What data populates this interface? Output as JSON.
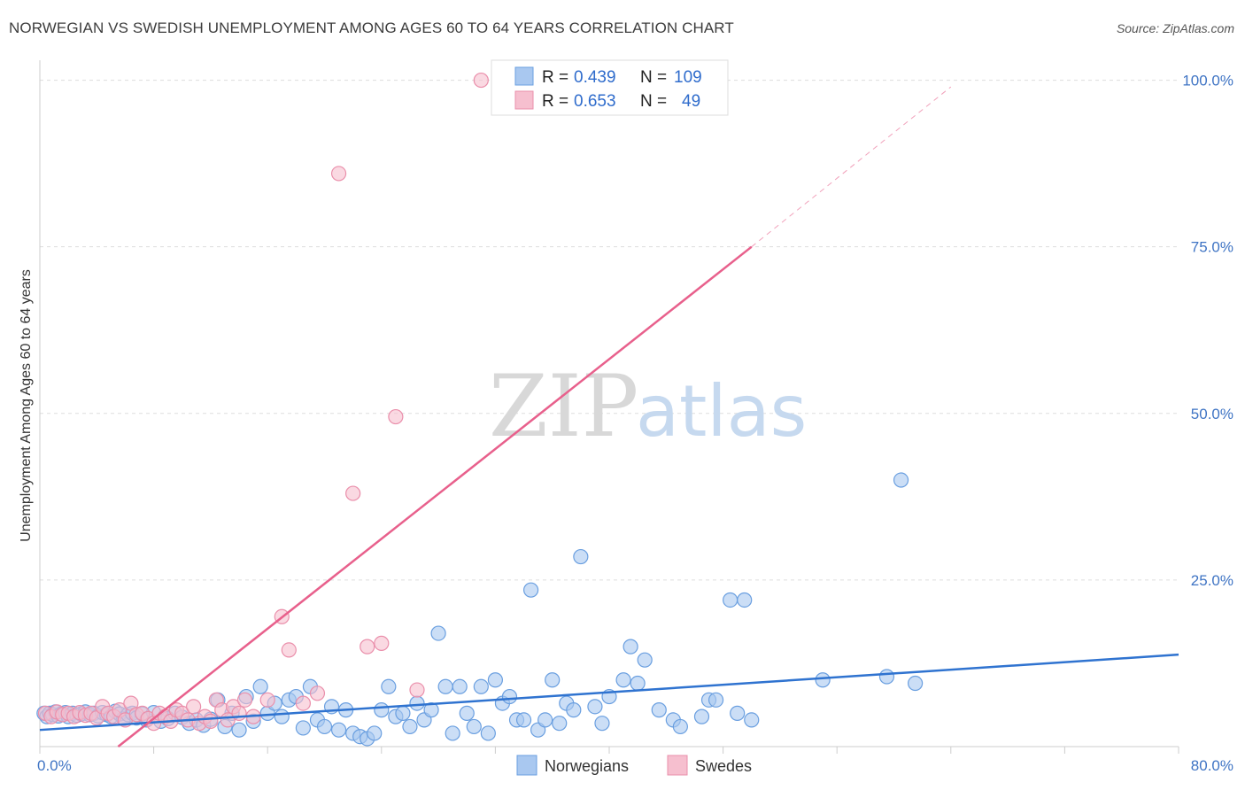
{
  "title": "NORWEGIAN VS SWEDISH UNEMPLOYMENT AMONG AGES 60 TO 64 YEARS CORRELATION CHART",
  "source": "Source: ZipAtlas.com",
  "watermark": {
    "zip": "ZIP",
    "atlas": "atlas"
  },
  "colors": {
    "blue_fill": "#a9c8f0",
    "blue_stroke": "#6a9fe0",
    "blue_line": "#2f73d0",
    "pink_fill": "#f6bfcf",
    "pink_stroke": "#ea8fab",
    "pink_line": "#e8608c",
    "grid": "#dddddd",
    "tick_text": "#3f74c4"
  },
  "legend": {
    "rows": [
      {
        "r_label": "R =",
        "r_value": "0.439",
        "n_label": "N =",
        "n_value": "109"
      },
      {
        "r_label": "R =",
        "r_value": "0.653",
        "n_label": "N =",
        "n_value": "49"
      }
    ]
  },
  "chart_data": {
    "type": "scatter",
    "title": "NORWEGIAN VS SWEDISH UNEMPLOYMENT AMONG AGES 60 TO 64 YEARS CORRELATION CHART",
    "xlabel": "",
    "ylabel": "Unemployment Among Ages 60 to 64 years",
    "xlim": [
      0,
      80
    ],
    "ylim": [
      0,
      103
    ],
    "x_tick_labels": [
      {
        "value": 0,
        "label": "0.0%"
      },
      {
        "value": 80,
        "label": "80.0%"
      }
    ],
    "y_tick_labels": [
      {
        "value": 25,
        "label": "25.0%"
      },
      {
        "value": 50,
        "label": "50.0%"
      },
      {
        "value": 75,
        "label": "75.0%"
      },
      {
        "value": 100,
        "label": "100.0%"
      }
    ],
    "grid": true,
    "legend_position": "top-center",
    "series": [
      {
        "name": "Norwegians",
        "color": "blue",
        "r": 0.439,
        "n": 109,
        "trend": {
          "x0": 0,
          "y0": 2.5,
          "x1": 80,
          "y1": 13.8
        },
        "points": [
          [
            0.3,
            5.0
          ],
          [
            0.5,
            4.5
          ],
          [
            0.7,
            5.0
          ],
          [
            0.9,
            4.8
          ],
          [
            1.1,
            5.2
          ],
          [
            1.3,
            4.6
          ],
          [
            1.5,
            4.9
          ],
          [
            1.8,
            5.1
          ],
          [
            2.0,
            4.5
          ],
          [
            2.3,
            5.0
          ],
          [
            2.6,
            4.7
          ],
          [
            2.9,
            4.9
          ],
          [
            3.2,
            5.2
          ],
          [
            3.5,
            4.8
          ],
          [
            3.8,
            5.0
          ],
          [
            4.1,
            4.6
          ],
          [
            4.4,
            5.1
          ],
          [
            4.7,
            4.8
          ],
          [
            5.0,
            4.5
          ],
          [
            5.3,
            5.3
          ],
          [
            5.6,
            4.9
          ],
          [
            5.9,
            4.2
          ],
          [
            6.2,
            4.8
          ],
          [
            6.5,
            5.0
          ],
          [
            6.8,
            4.3
          ],
          [
            7.2,
            4.9
          ],
          [
            7.5,
            4.0
          ],
          [
            8.0,
            5.1
          ],
          [
            8.5,
            3.8
          ],
          [
            9.0,
            4.2
          ],
          [
            9.5,
            5.0
          ],
          [
            10.0,
            4.4
          ],
          [
            10.5,
            3.5
          ],
          [
            11.0,
            4.0
          ],
          [
            11.5,
            3.2
          ],
          [
            12.0,
            4.1
          ],
          [
            12.5,
            7.0
          ],
          [
            13.0,
            3.0
          ],
          [
            13.5,
            5.0
          ],
          [
            14.0,
            2.5
          ],
          [
            14.5,
            7.5
          ],
          [
            15.0,
            3.8
          ],
          [
            15.5,
            9.0
          ],
          [
            16.0,
            5.0
          ],
          [
            16.5,
            6.5
          ],
          [
            17.0,
            4.5
          ],
          [
            17.5,
            7.0
          ],
          [
            18.0,
            7.5
          ],
          [
            18.5,
            2.8
          ],
          [
            19.0,
            9.0
          ],
          [
            19.5,
            4.0
          ],
          [
            20.0,
            3.0
          ],
          [
            20.5,
            6.0
          ],
          [
            21.0,
            2.5
          ],
          [
            21.5,
            5.5
          ],
          [
            22.0,
            2.0
          ],
          [
            22.5,
            1.5
          ],
          [
            23.0,
            1.2
          ],
          [
            23.5,
            2.0
          ],
          [
            24.0,
            5.5
          ],
          [
            24.5,
            9.0
          ],
          [
            25.0,
            4.5
          ],
          [
            25.5,
            5.0
          ],
          [
            26.0,
            3.0
          ],
          [
            26.5,
            6.5
          ],
          [
            27.0,
            4.0
          ],
          [
            27.5,
            5.5
          ],
          [
            28.0,
            17.0
          ],
          [
            28.5,
            9.0
          ],
          [
            29.0,
            2.0
          ],
          [
            29.5,
            9.0
          ],
          [
            30.0,
            5.0
          ],
          [
            30.5,
            3.0
          ],
          [
            31.0,
            9.0
          ],
          [
            31.5,
            2.0
          ],
          [
            32.0,
            10.0
          ],
          [
            32.5,
            6.5
          ],
          [
            33.0,
            7.5
          ],
          [
            33.5,
            4.0
          ],
          [
            34.0,
            4.0
          ],
          [
            34.5,
            23.5
          ],
          [
            35.0,
            2.5
          ],
          [
            35.5,
            4.0
          ],
          [
            36.0,
            10.0
          ],
          [
            36.5,
            3.5
          ],
          [
            37.0,
            6.5
          ],
          [
            37.5,
            5.5
          ],
          [
            38.0,
            28.5
          ],
          [
            39.0,
            6.0
          ],
          [
            39.5,
            3.5
          ],
          [
            40.0,
            7.5
          ],
          [
            41.0,
            10.0
          ],
          [
            41.5,
            15.0
          ],
          [
            42.0,
            9.5
          ],
          [
            42.5,
            13.0
          ],
          [
            43.5,
            5.5
          ],
          [
            44.5,
            4.0
          ],
          [
            45.0,
            3.0
          ],
          [
            46.5,
            4.5
          ],
          [
            47.0,
            7.0
          ],
          [
            47.5,
            7.0
          ],
          [
            48.5,
            22.0
          ],
          [
            49.0,
            5.0
          ],
          [
            49.5,
            22.0
          ],
          [
            50.0,
            4.0
          ],
          [
            55.0,
            10.0
          ],
          [
            59.5,
            10.5
          ],
          [
            60.5,
            40.0
          ],
          [
            61.5,
            9.5
          ]
        ]
      },
      {
        "name": "Swedes",
        "color": "pink",
        "r": 0.653,
        "n": 49,
        "trend": {
          "x0": 5.5,
          "y0": 0,
          "x1": 50,
          "y1": 75,
          "dashed_to_x": 64,
          "dashed_to_y": 99
        },
        "points": [
          [
            0.4,
            5.0
          ],
          [
            0.8,
            4.5
          ],
          [
            1.2,
            5.2
          ],
          [
            1.6,
            4.8
          ],
          [
            2.0,
            5.0
          ],
          [
            2.4,
            4.5
          ],
          [
            2.8,
            5.1
          ],
          [
            3.2,
            4.7
          ],
          [
            3.6,
            5.0
          ],
          [
            4.0,
            4.3
          ],
          [
            4.4,
            6.0
          ],
          [
            4.8,
            5.0
          ],
          [
            5.2,
            4.5
          ],
          [
            5.6,
            5.5
          ],
          [
            6.0,
            4.0
          ],
          [
            6.4,
            6.5
          ],
          [
            6.8,
            4.8
          ],
          [
            7.2,
            5.0
          ],
          [
            7.6,
            4.2
          ],
          [
            8.0,
            3.5
          ],
          [
            8.4,
            5.0
          ],
          [
            8.8,
            4.5
          ],
          [
            9.2,
            3.8
          ],
          [
            9.6,
            5.5
          ],
          [
            10.0,
            5.0
          ],
          [
            10.4,
            4.0
          ],
          [
            10.8,
            6.0
          ],
          [
            11.2,
            3.5
          ],
          [
            11.6,
            4.5
          ],
          [
            12.0,
            3.8
          ],
          [
            12.4,
            7.0
          ],
          [
            12.8,
            5.5
          ],
          [
            13.2,
            4.0
          ],
          [
            13.6,
            6.0
          ],
          [
            14.0,
            5.0
          ],
          [
            14.4,
            7.0
          ],
          [
            15.0,
            4.5
          ],
          [
            16.0,
            7.0
          ],
          [
            17.0,
            19.5
          ],
          [
            17.5,
            14.5
          ],
          [
            18.5,
            6.5
          ],
          [
            19.5,
            8.0
          ],
          [
            21.0,
            86.0
          ],
          [
            22.0,
            38.0
          ],
          [
            23.0,
            15.0
          ],
          [
            24.0,
            15.5
          ],
          [
            25.0,
            49.5
          ],
          [
            26.5,
            8.5
          ],
          [
            31.0,
            100.0
          ]
        ]
      }
    ]
  },
  "bottom_legend": [
    "Norwegians",
    "Swedes"
  ]
}
